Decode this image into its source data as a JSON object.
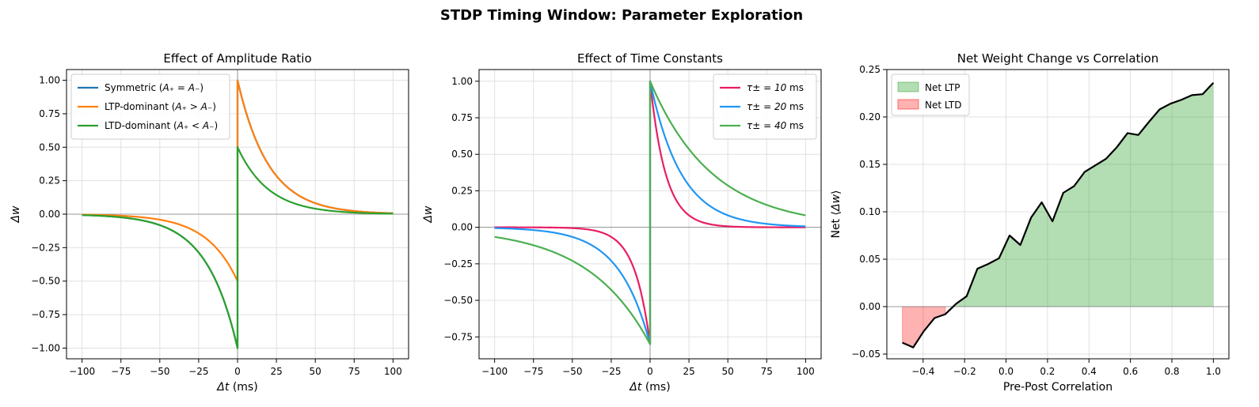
{
  "figure": {
    "title": "STDP Timing Window: Parameter Exploration"
  },
  "chart_data": [
    {
      "type": "line",
      "title": "Effect of Amplitude Ratio",
      "xlabel_var": "Δt",
      "xlabel_unit": " (ms)",
      "ylabel": "Δw",
      "xlim": [
        -110,
        110
      ],
      "ylim": [
        -1.08,
        1.08
      ],
      "xticks": [
        -100,
        -75,
        -50,
        -25,
        0,
        25,
        50,
        75,
        100
      ],
      "xtick_labels": [
        "−100",
        "−75",
        "−50",
        "−25",
        "0",
        "25",
        "50",
        "75",
        "100"
      ],
      "yticks": [
        -1.0,
        -0.75,
        -0.5,
        -0.25,
        0.0,
        0.25,
        0.5,
        0.75,
        1.0
      ],
      "ytick_labels": [
        "−1.00",
        "−0.75",
        "−0.50",
        "−0.25",
        "0.00",
        "0.25",
        "0.50",
        "0.75",
        "1.00"
      ],
      "legend_position": "upper-left",
      "grid": true,
      "series": [
        {
          "name_prefix": "Symmetric (",
          "name_math": "A₊ = A₋",
          "name_suffix": ")",
          "color": "#1f77b4",
          "a_plus": 1.0,
          "a_minus": 1.0,
          "tau_plus": 20,
          "tau_minus": 20
        },
        {
          "name_prefix": "LTP-dominant (",
          "name_math": "A₊ > A₋",
          "name_suffix": ")",
          "color": "#ff7f0e",
          "a_plus": 1.0,
          "a_minus": 0.5,
          "tau_plus": 20,
          "tau_minus": 20
        },
        {
          "name_prefix": "LTD-dominant (",
          "name_math": "A₊ < A₋",
          "name_suffix": ")",
          "color": "#2ca02c",
          "a_plus": 0.5,
          "a_minus": 1.0,
          "tau_plus": 20,
          "tau_minus": 20
        }
      ]
    },
    {
      "type": "line",
      "title": "Effect of Time Constants",
      "xlabel_var": "Δt",
      "xlabel_unit": " (ms)",
      "ylabel": "Δw",
      "xlim": [
        -110,
        110
      ],
      "ylim": [
        -0.9,
        1.08
      ],
      "xticks": [
        -100,
        -75,
        -50,
        -25,
        0,
        25,
        50,
        75,
        100
      ],
      "xtick_labels": [
        "−100",
        "−75",
        "−50",
        "−25",
        "0",
        "25",
        "50",
        "75",
        "100"
      ],
      "yticks": [
        -0.75,
        -0.5,
        -0.25,
        0.0,
        0.25,
        0.5,
        0.75,
        1.0
      ],
      "ytick_labels": [
        "−0.75",
        "−0.50",
        "−0.25",
        "0.00",
        "0.25",
        "0.50",
        "0.75",
        "1.00"
      ],
      "legend_position": "upper-right",
      "grid": true,
      "series": [
        {
          "name_prefix": "",
          "name_math": "τ± = 10",
          "name_suffix": " ms",
          "color": "#e91e63",
          "a_plus": 1.0,
          "a_minus": 0.8,
          "tau_plus": 10,
          "tau_minus": 10
        },
        {
          "name_prefix": "",
          "name_math": "τ± = 20",
          "name_suffix": " ms",
          "color": "#2196f3",
          "a_plus": 1.0,
          "a_minus": 0.8,
          "tau_plus": 20,
          "tau_minus": 20
        },
        {
          "name_prefix": "",
          "name_math": "τ± = 40",
          "name_suffix": " ms",
          "color": "#4caf50",
          "a_plus": 1.0,
          "a_minus": 0.8,
          "tau_plus": 40,
          "tau_minus": 40
        }
      ]
    },
    {
      "type": "area",
      "title": "Net Weight Change vs Correlation",
      "xlabel": "Pre-Post Correlation",
      "ylabel_prefix": "Net ⟨",
      "ylabel_var": "Δw",
      "ylabel_suffix": "⟩",
      "xlim": [
        -0.575,
        1.075
      ],
      "ylim": [
        -0.055,
        0.25
      ],
      "xticks": [
        -0.4,
        -0.2,
        0.0,
        0.2,
        0.4,
        0.6,
        0.8,
        1.0
      ],
      "xtick_labels": [
        "−0.4",
        "−0.2",
        "0.0",
        "0.2",
        "0.4",
        "0.6",
        "0.8",
        "1.0"
      ],
      "yticks": [
        -0.05,
        0.0,
        0.05,
        0.1,
        0.15,
        0.2,
        0.25
      ],
      "ytick_labels": [
        "−0.05",
        "0.00",
        "0.05",
        "0.10",
        "0.15",
        "0.20",
        "0.25"
      ],
      "legend_position": "upper-left",
      "grid": true,
      "line_color": "#000000",
      "ltp_color": "#2ca02c",
      "ltd_color": "#ff0000",
      "legend": [
        "Net LTP",
        "Net LTD"
      ],
      "x": [
        -0.5,
        -0.448,
        -0.397,
        -0.345,
        -0.293,
        -0.241,
        -0.19,
        -0.138,
        -0.086,
        -0.034,
        0.017,
        0.069,
        0.121,
        0.172,
        0.224,
        0.276,
        0.328,
        0.379,
        0.431,
        0.483,
        0.534,
        0.586,
        0.638,
        0.69,
        0.741,
        0.793,
        0.845,
        0.897,
        0.948,
        1.0
      ],
      "y": [
        -0.038,
        -0.043,
        -0.026,
        -0.012,
        -0.008,
        0.003,
        0.011,
        0.04,
        0.045,
        0.051,
        0.075,
        0.065,
        0.094,
        0.11,
        0.09,
        0.12,
        0.127,
        0.142,
        0.149,
        0.156,
        0.168,
        0.183,
        0.181,
        0.195,
        0.208,
        0.214,
        0.218,
        0.223,
        0.224,
        0.236
      ]
    }
  ]
}
